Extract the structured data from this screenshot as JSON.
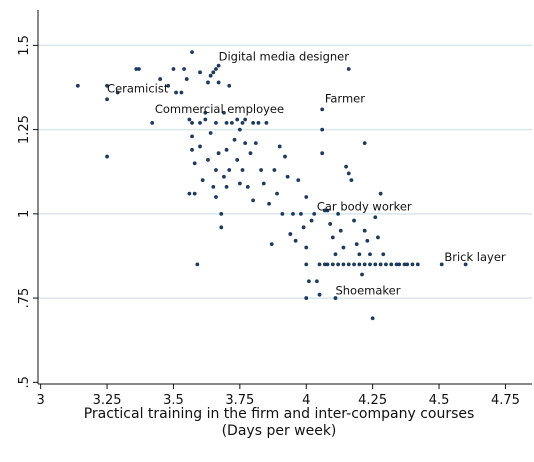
{
  "chart_data": {
    "type": "scatter",
    "title": "",
    "xlabel": "Practical training in the firm and inter-company courses",
    "xlabel_line2": "(Days per week)",
    "ylabel": "",
    "xlim": [
      3,
      4.75
    ],
    "ylim": [
      0.5,
      1.6
    ],
    "x_ticks": [
      3,
      3.25,
      3.5,
      3.75,
      4,
      4.25,
      4.5,
      4.75
    ],
    "x_tick_labels": [
      "3",
      "3.25",
      "3.5",
      "3.75",
      "4",
      "4.25",
      "4.5",
      "4.75"
    ],
    "y_ticks": [
      0.5,
      0.75,
      1,
      1.25,
      1.5
    ],
    "y_tick_labels": [
      ".5",
      ".75",
      "1",
      "1.25",
      "1.5"
    ],
    "grid": "horizontal",
    "marker_color": "#1f3a5f",
    "grid_color": "#d8e8ec",
    "annotations": [
      {
        "text": "Digital media designer",
        "x": 3.67,
        "y": 1.455
      },
      {
        "text": "Ceramicist",
        "x": 3.25,
        "y": 1.36
      },
      {
        "text": "Commercial employee",
        "x": 3.43,
        "y": 1.3
      },
      {
        "text": "Farmer",
        "x": 4.07,
        "y": 1.33
      },
      {
        "text": "Car body worker",
        "x": 4.04,
        "y": 1.01
      },
      {
        "text": "Brick layer",
        "x": 4.52,
        "y": 0.86
      },
      {
        "text": "Shoemaker",
        "x": 4.11,
        "y": 0.76
      }
    ],
    "series": [
      {
        "points": [
          [
            3.14,
            1.38
          ],
          [
            3.25,
            1.38
          ],
          [
            3.25,
            1.34
          ],
          [
            3.25,
            1.17
          ],
          [
            3.29,
            1.36
          ],
          [
            3.36,
            1.43
          ],
          [
            3.37,
            1.43
          ],
          [
            3.42,
            1.27
          ],
          [
            3.45,
            1.4
          ],
          [
            3.48,
            1.38
          ],
          [
            3.5,
            1.43
          ],
          [
            3.51,
            1.36
          ],
          [
            3.53,
            1.36
          ],
          [
            3.54,
            1.43
          ],
          [
            3.55,
            1.4
          ],
          [
            3.56,
            1.28
          ],
          [
            3.56,
            1.06
          ],
          [
            3.57,
            1.48
          ],
          [
            3.57,
            1.27
          ],
          [
            3.57,
            1.23
          ],
          [
            3.57,
            1.19
          ],
          [
            3.58,
            1.15
          ],
          [
            3.58,
            1.06
          ],
          [
            3.59,
            0.85
          ],
          [
            3.6,
            1.42
          ],
          [
            3.6,
            1.27
          ],
          [
            3.6,
            1.2
          ],
          [
            3.61,
            1.1
          ],
          [
            3.62,
            1.3
          ],
          [
            3.62,
            1.28
          ],
          [
            3.63,
            1.39
          ],
          [
            3.63,
            1.16
          ],
          [
            3.64,
            1.41
          ],
          [
            3.64,
            1.24
          ],
          [
            3.65,
            1.42
          ],
          [
            3.65,
            1.08
          ],
          [
            3.66,
            1.43
          ],
          [
            3.66,
            1.27
          ],
          [
            3.66,
            1.13
          ],
          [
            3.66,
            1.05
          ],
          [
            3.67,
            1.44
          ],
          [
            3.67,
            1.39
          ],
          [
            3.67,
            1.18
          ],
          [
            3.68,
            1.0
          ],
          [
            3.68,
            0.96
          ],
          [
            3.69,
            1.3
          ],
          [
            3.69,
            1.11
          ],
          [
            3.7,
            1.27
          ],
          [
            3.7,
            1.19
          ],
          [
            3.7,
            1.08
          ],
          [
            3.71,
            1.38
          ],
          [
            3.71,
            1.13
          ],
          [
            3.72,
            1.27
          ],
          [
            3.73,
            1.22
          ],
          [
            3.74,
            1.28
          ],
          [
            3.74,
            1.16
          ],
          [
            3.75,
            1.25
          ],
          [
            3.75,
            1.09
          ],
          [
            3.76,
            1.27
          ],
          [
            3.76,
            1.13
          ],
          [
            3.77,
            1.28
          ],
          [
            3.77,
            1.21
          ],
          [
            3.78,
            1.08
          ],
          [
            3.79,
            1.18
          ],
          [
            3.8,
            1.27
          ],
          [
            3.8,
            1.04
          ],
          [
            3.81,
            1.21
          ],
          [
            3.82,
            1.27
          ],
          [
            3.83,
            1.13
          ],
          [
            3.84,
            1.09
          ],
          [
            3.85,
            1.27
          ],
          [
            3.86,
            1.03
          ],
          [
            3.87,
            0.91
          ],
          [
            3.88,
            1.13
          ],
          [
            3.89,
            1.06
          ],
          [
            3.9,
            1.2
          ],
          [
            3.91,
            1.0
          ],
          [
            3.92,
            1.17
          ],
          [
            3.93,
            1.11
          ],
          [
            3.94,
            0.94
          ],
          [
            3.95,
            1.0
          ],
          [
            3.96,
            0.92
          ],
          [
            3.97,
            1.1
          ],
          [
            3.98,
            1.0
          ],
          [
            3.99,
            0.96
          ],
          [
            4.0,
            1.05
          ],
          [
            4.0,
            0.9
          ],
          [
            4.0,
            0.85
          ],
          [
            4.0,
            0.75
          ],
          [
            4.01,
            0.8
          ],
          [
            4.02,
            0.98
          ],
          [
            4.03,
            1.0
          ],
          [
            4.04,
            0.8
          ],
          [
            4.05,
            0.85
          ],
          [
            4.05,
            0.76
          ],
          [
            4.06,
            1.31
          ],
          [
            4.06,
            1.25
          ],
          [
            4.06,
            1.18
          ],
          [
            4.07,
            1.01
          ],
          [
            4.07,
            0.85
          ],
          [
            4.08,
            1.01
          ],
          [
            4.09,
            0.97
          ],
          [
            4.1,
            0.93
          ],
          [
            4.11,
            0.88
          ],
          [
            4.11,
            0.75
          ],
          [
            4.12,
            1.0
          ],
          [
            4.13,
            0.95
          ],
          [
            4.14,
            0.9
          ],
          [
            4.15,
            1.14
          ],
          [
            4.16,
            1.43
          ],
          [
            4.16,
            1.12
          ],
          [
            4.17,
            1.1
          ],
          [
            4.18,
            0.98
          ],
          [
            4.19,
            0.91
          ],
          [
            4.2,
            0.88
          ],
          [
            4.21,
            0.82
          ],
          [
            4.22,
            1.21
          ],
          [
            4.22,
            0.95
          ],
          [
            4.23,
            0.92
          ],
          [
            4.24,
            0.88
          ],
          [
            4.25,
            0.69
          ],
          [
            4.26,
            0.99
          ],
          [
            4.27,
            0.93
          ],
          [
            4.28,
            1.06
          ],
          [
            4.29,
            0.88
          ],
          [
            4.3,
            0.85
          ],
          [
            4.32,
            0.85
          ],
          [
            4.35,
            0.85
          ],
          [
            4.38,
            0.85
          ],
          [
            4.42,
            0.85
          ],
          [
            4.51,
            0.85
          ],
          [
            4.6,
            0.85
          ],
          [
            4.08,
            0.85
          ],
          [
            4.1,
            0.85
          ],
          [
            4.12,
            0.85
          ],
          [
            4.14,
            0.85
          ],
          [
            4.16,
            0.85
          ],
          [
            4.18,
            0.85
          ],
          [
            4.2,
            0.85
          ],
          [
            4.22,
            0.85
          ],
          [
            4.24,
            0.85
          ],
          [
            4.26,
            0.85
          ],
          [
            4.28,
            0.85
          ],
          [
            4.34,
            0.85
          ],
          [
            4.37,
            0.85
          ],
          [
            4.4,
            0.85
          ]
        ]
      }
    ]
  }
}
